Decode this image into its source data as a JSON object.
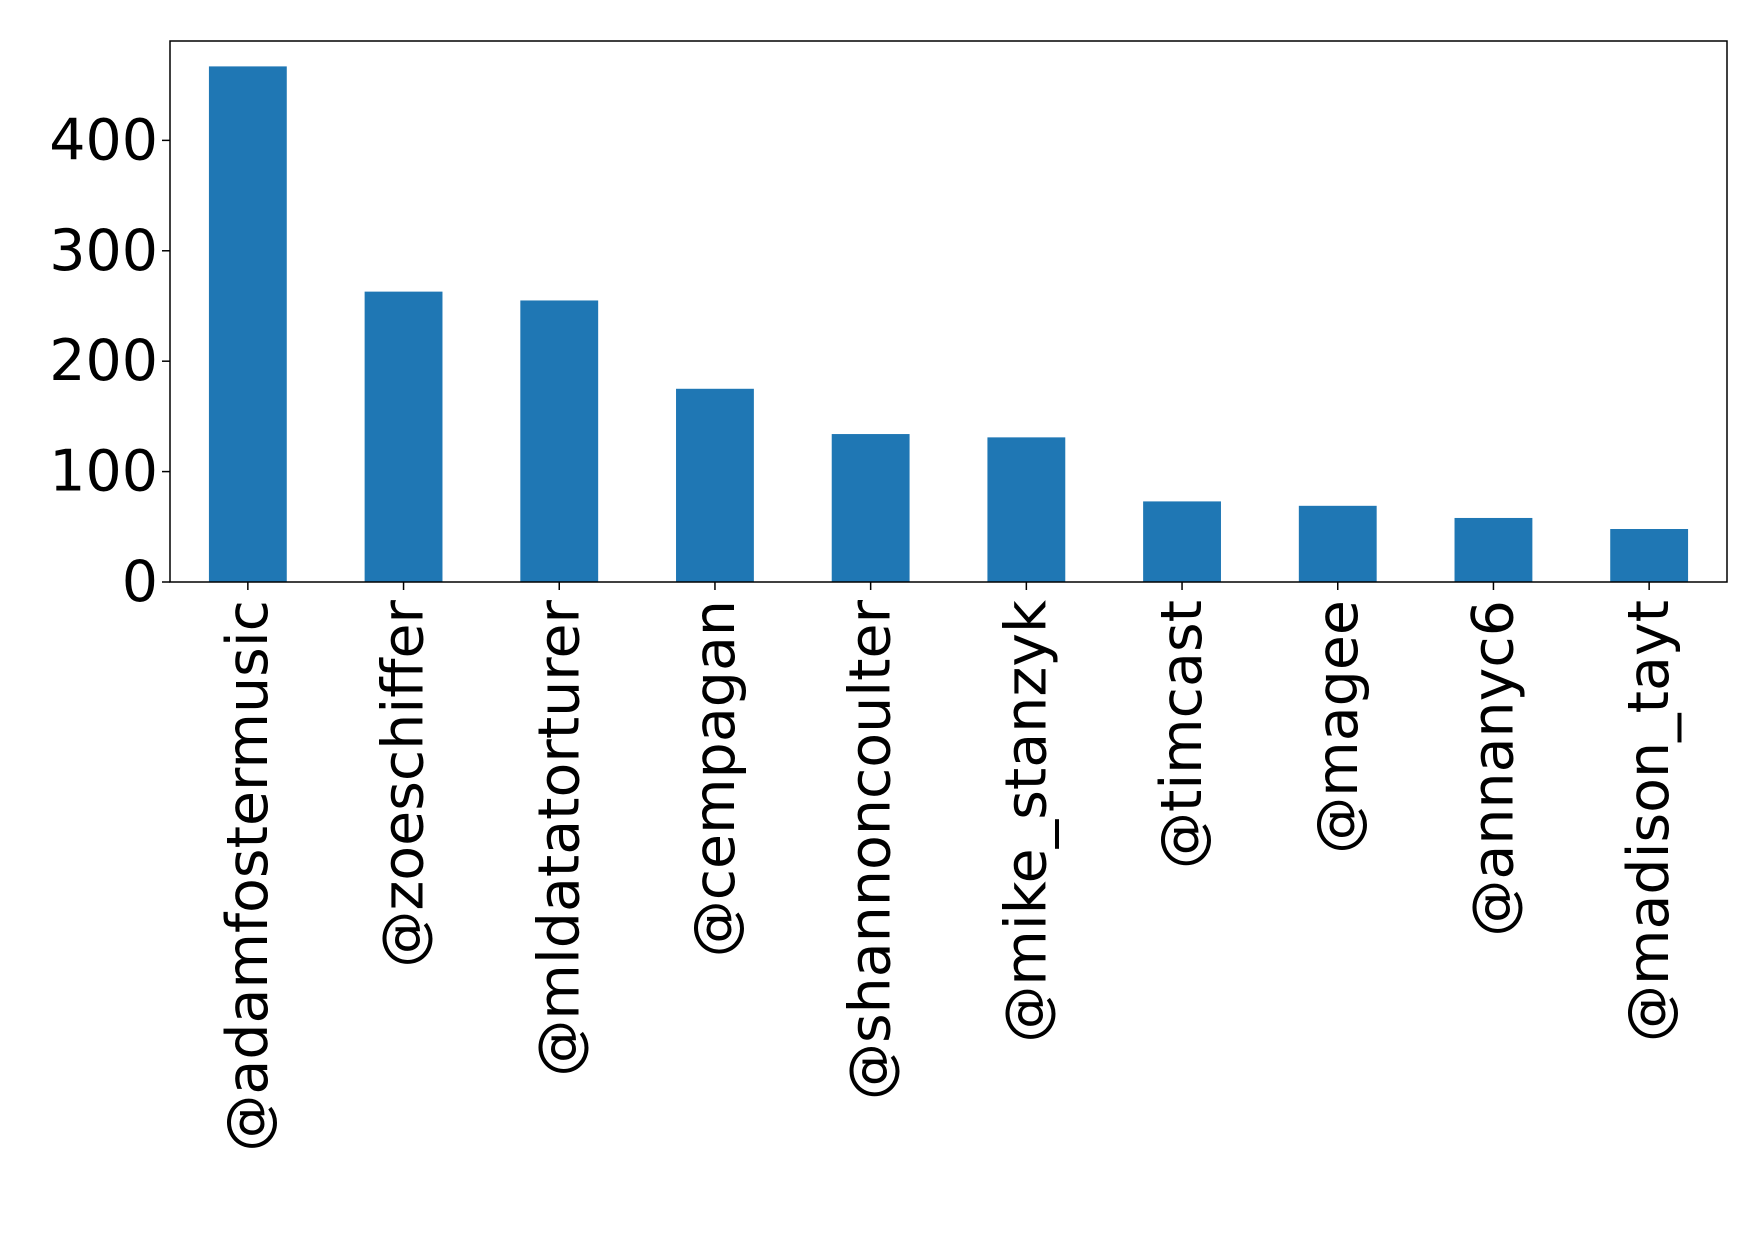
{
  "chart_data": {
    "type": "bar",
    "title": "",
    "xlabel": "",
    "ylabel": "",
    "categories": [
      "@adamfostermusic",
      "@zoeschiffer",
      "@mldatatorturer",
      "@cempagan",
      "@shannoncoulter",
      "@mike_stanzyk",
      "@timcast",
      "@magee",
      "@annanyc6",
      "@madison_tayt"
    ],
    "values": [
      467,
      263,
      255,
      175,
      134,
      131,
      73,
      69,
      58,
      48
    ],
    "ylim": [
      0,
      490
    ],
    "yticks": [
      0,
      100,
      200,
      300,
      400
    ],
    "grid": false,
    "legend": "none",
    "bar_color": "#1f77b4"
  }
}
